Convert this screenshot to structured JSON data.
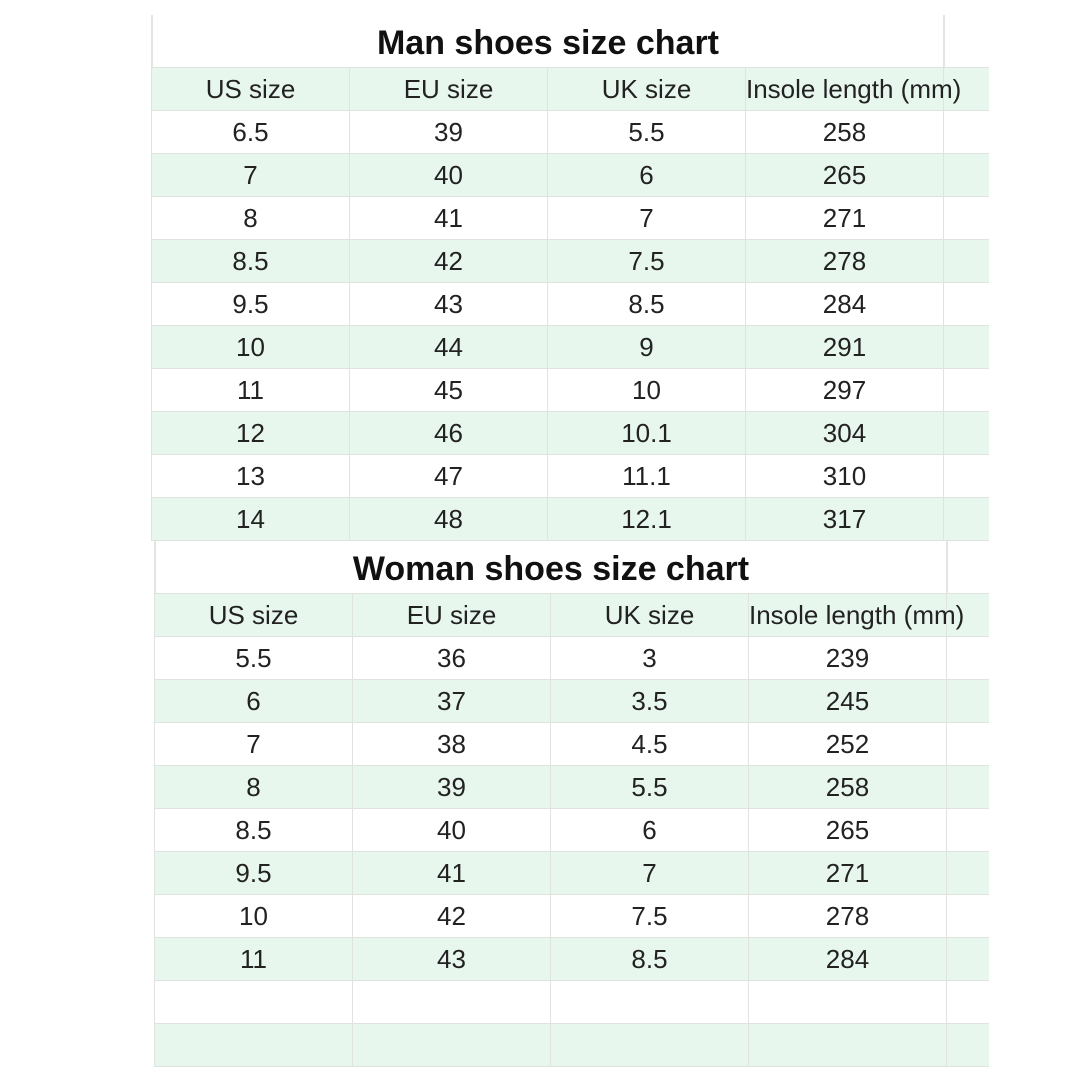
{
  "man": {
    "title": "Man shoes size chart",
    "headers": [
      "US size",
      "EU size",
      "UK size",
      "Insole length (mm)"
    ],
    "rows": [
      [
        "6.5",
        "39",
        "5.5",
        "258"
      ],
      [
        "7",
        "40",
        "6",
        "265"
      ],
      [
        "8",
        "41",
        "7",
        "271"
      ],
      [
        "8.5",
        "42",
        "7.5",
        "278"
      ],
      [
        "9.5",
        "43",
        "8.5",
        "284"
      ],
      [
        "10",
        "44",
        "9",
        "291"
      ],
      [
        "11",
        "45",
        "10",
        "297"
      ],
      [
        "12",
        "46",
        "10.1",
        "304"
      ],
      [
        "13",
        "47",
        "11.1",
        "310"
      ],
      [
        "14",
        "48",
        "12.1",
        "317"
      ]
    ]
  },
  "woman": {
    "title": "Woman shoes size chart",
    "headers": [
      "US size",
      "EU size",
      "UK size",
      "Insole length (mm)"
    ],
    "rows": [
      [
        "5.5",
        "36",
        "3",
        "239"
      ],
      [
        "6",
        "37",
        "3.5",
        "245"
      ],
      [
        "7",
        "38",
        "4.5",
        "252"
      ],
      [
        "8",
        "39",
        "5.5",
        "258"
      ],
      [
        "8.5",
        "40",
        "6",
        "265"
      ],
      [
        "9.5",
        "41",
        "7",
        "271"
      ],
      [
        "10",
        "42",
        "7.5",
        "278"
      ],
      [
        "11",
        "43",
        "8.5",
        "284"
      ],
      [
        "",
        "",
        "",
        ""
      ],
      [
        "",
        "",
        "",
        ""
      ]
    ]
  },
  "colors": {
    "row_highlight": "#e8f7ee",
    "grid": "#dfe4e0"
  }
}
